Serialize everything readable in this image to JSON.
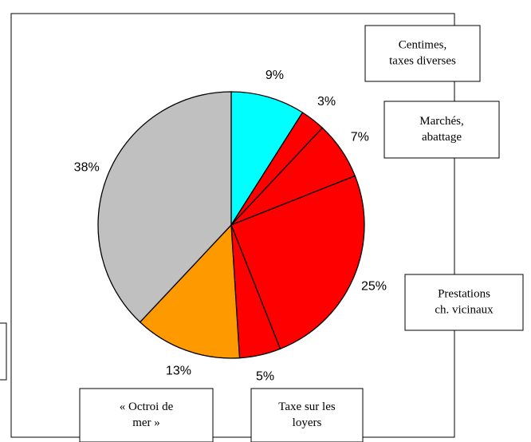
{
  "chart_data": {
    "type": "pie",
    "values": [
      9,
      3,
      7,
      25,
      5,
      13,
      38
    ],
    "value_labels": [
      "9%",
      "3%",
      "7%",
      "25%",
      "5%",
      "13%",
      "38%"
    ],
    "colors": [
      "#00ffff",
      "#ff0000",
      "#ff0000",
      "#ff0000",
      "#ff0000",
      "#ff9900",
      "#c0c0c0"
    ],
    "annotations": [
      [
        "Centimes,",
        "taxes diverses"
      ],
      [
        "Marchés,",
        "abattage"
      ],
      [
        "Prestations",
        "ch. vicinaux"
      ],
      [
        "Taxe sur les",
        "loyers"
      ],
      [
        "« Octroi de",
        "mer »"
      ]
    ]
  }
}
